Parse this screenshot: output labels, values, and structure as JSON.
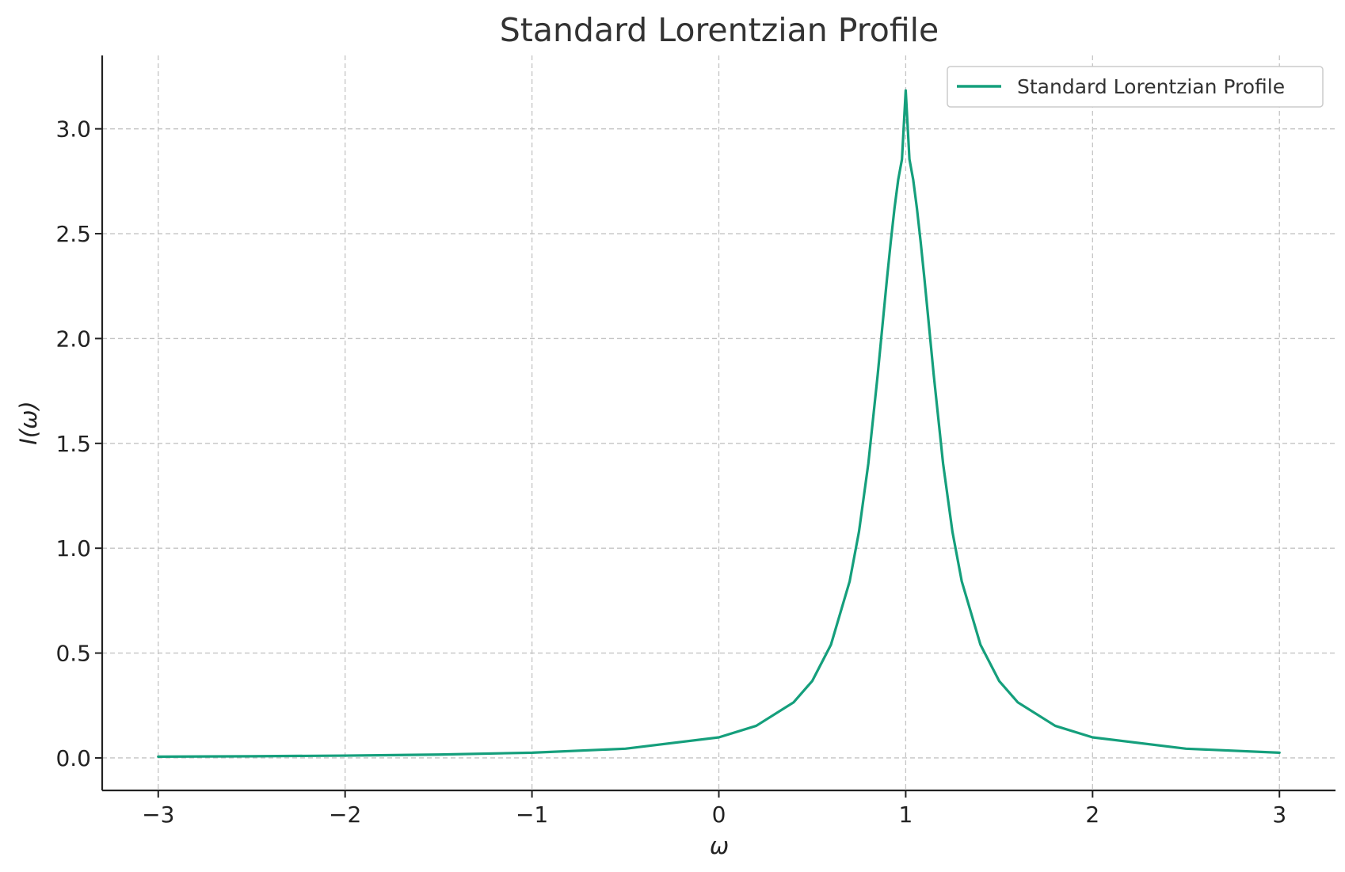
{
  "chart_data": {
    "type": "line",
    "title": "Standard Lorentzian Profile",
    "xlabel": "ω",
    "ylabel": "I(ω)",
    "xlim": [
      -3.3,
      3.3
    ],
    "ylim": [
      -0.155,
      3.35
    ],
    "xticks": [
      -3,
      -2,
      -1,
      0,
      1,
      2,
      3
    ],
    "xtick_labels": [
      "−3",
      "−2",
      "−1",
      "0",
      "1",
      "2",
      "3"
    ],
    "yticks": [
      0.0,
      0.5,
      1.0,
      1.5,
      2.0,
      2.5,
      3.0
    ],
    "ytick_labels": [
      "0.0",
      "0.5",
      "1.0",
      "1.5",
      "2.0",
      "2.5",
      "3.0"
    ],
    "grid": true,
    "legend_position": "top-right",
    "series": [
      {
        "name": "Standard Lorentzian Profile",
        "color": "#159f7c",
        "x": [
          -3.0,
          -2.5,
          -2.0,
          -1.5,
          -1.0,
          -0.5,
          0.0,
          0.2,
          0.4,
          0.5,
          0.6,
          0.7,
          0.75,
          0.8,
          0.85,
          0.9,
          0.92,
          0.94,
          0.96,
          0.98,
          1.0,
          1.02,
          1.04,
          1.06,
          1.08,
          1.1,
          1.15,
          1.2,
          1.25,
          1.3,
          1.4,
          1.5,
          1.6,
          1.8,
          2.0,
          2.5,
          3.0
        ],
        "y": [
          0.006,
          0.008,
          0.011,
          0.016,
          0.025,
          0.044,
          0.098,
          0.153,
          0.265,
          0.367,
          0.54,
          0.842,
          1.079,
          1.404,
          1.826,
          2.287,
          2.461,
          2.621,
          2.758,
          2.855,
          3.183,
          2.855,
          2.758,
          2.621,
          2.461,
          2.287,
          1.826,
          1.404,
          1.079,
          0.842,
          0.54,
          0.367,
          0.265,
          0.153,
          0.098,
          0.044,
          0.025
        ]
      }
    ]
  }
}
